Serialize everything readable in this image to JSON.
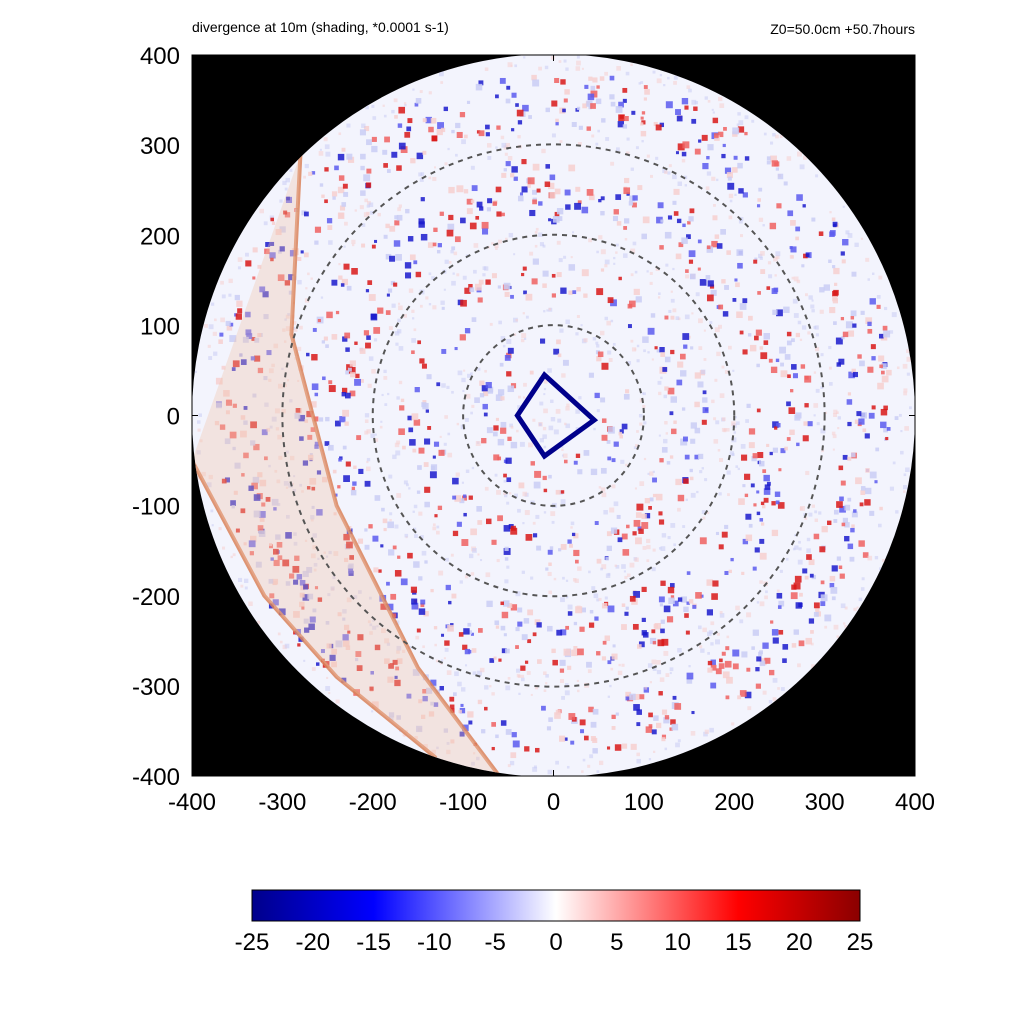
{
  "header": {
    "title": "divergence at 10m (shading, *0.0001 s-1)",
    "info": "Z0=50.0cm  +50.7hours"
  },
  "colors": {
    "background_outside_domain": "#000000",
    "negative_max": "#00008b",
    "negative_mid": "#0000ff",
    "zero": "#ffffff",
    "positive_mid": "#ff0000",
    "positive_max": "#8b0000",
    "dashed_rings": "#555555",
    "track_band": "#d9825a"
  },
  "chart_data": {
    "type": "heatmap",
    "title": "divergence at 10m (shading, *0.0001 s-1)",
    "annotation": "Z0=50.0cm  +50.7hours",
    "xlim": [
      -400,
      400
    ],
    "ylim": [
      -400,
      400
    ],
    "x_ticks": [
      "-400",
      "-300",
      "-200",
      "-100",
      "0",
      "100",
      "200",
      "300",
      "400"
    ],
    "y_ticks": [
      "400",
      "300",
      "200",
      "100",
      "0",
      "-100",
      "-200",
      "-300",
      "-400"
    ],
    "x_tick_values": [
      -400,
      -300,
      -200,
      -100,
      0,
      100,
      200,
      300,
      400
    ],
    "y_tick_values": [
      400,
      300,
      200,
      100,
      0,
      -100,
      -200,
      -300,
      -400
    ],
    "domain_radius": 400,
    "range_rings": [
      100,
      200,
      300
    ],
    "color_scale": {
      "min": -25,
      "max": 25,
      "ticks": [
        "-25",
        "-20",
        "-15",
        "-10",
        "-5",
        "0",
        "5",
        "10",
        "15",
        "20",
        "25"
      ],
      "tick_values": [
        -25,
        -20,
        -15,
        -10,
        -5,
        0,
        5,
        10,
        15,
        20,
        25
      ]
    },
    "eyewall_square_corners": [
      [
        -10,
        45
      ],
      [
        45,
        -5
      ],
      [
        -10,
        -45
      ],
      [
        -40,
        0
      ]
    ],
    "track_lines": [
      {
        "points": [
          [
            -280,
            290
          ],
          [
            -290,
            90
          ],
          [
            -240,
            -100
          ],
          [
            -150,
            -280
          ],
          [
            -60,
            -400
          ]
        ]
      },
      {
        "points": [
          [
            -400,
            -50
          ],
          [
            -320,
            -200
          ],
          [
            -240,
            -290
          ],
          [
            -130,
            -380
          ]
        ]
      }
    ]
  }
}
